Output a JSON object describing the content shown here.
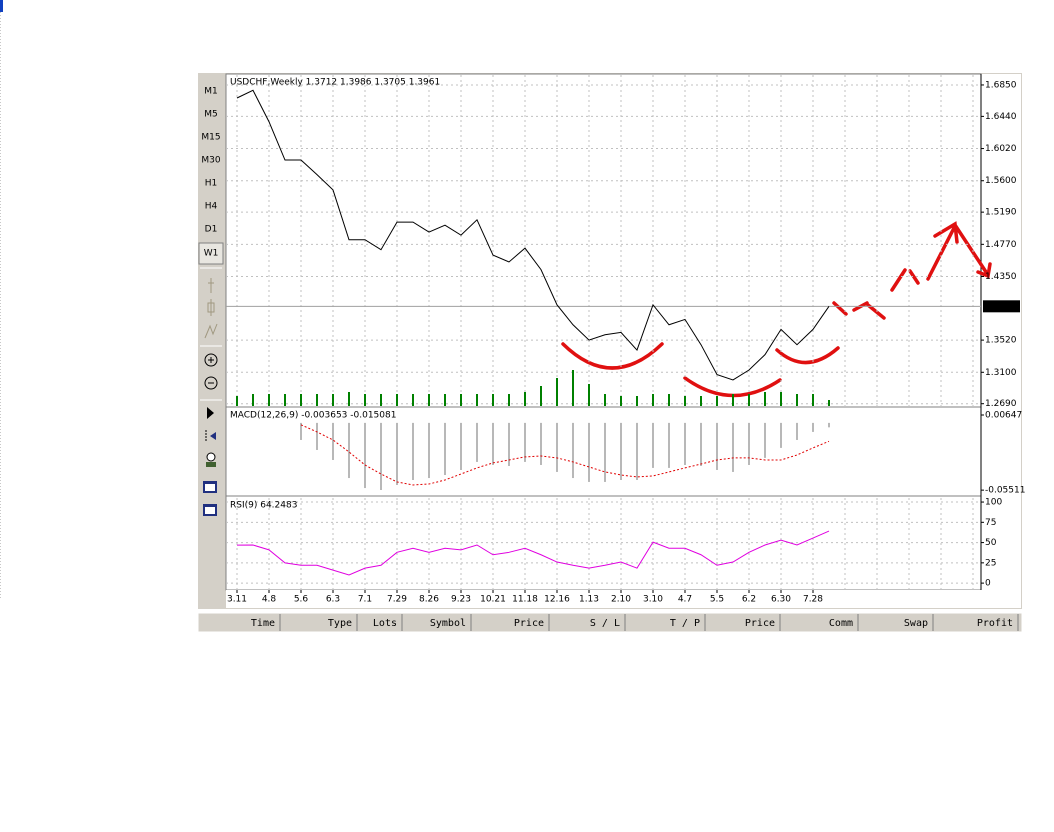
{
  "toolbar": {
    "timeframes": [
      "M1",
      "M5",
      "M15",
      "M30",
      "H1",
      "H4",
      "D1",
      "W1"
    ]
  },
  "chart_data": [
    {
      "type": "line",
      "title": "USDCHF,Weekly  1.3712 1.3986 1.3705 1.3961",
      "color": "#000000",
      "values": [
        1.668,
        1.678,
        1.637,
        1.587,
        1.587,
        1.568,
        1.548,
        1.483,
        1.483,
        1.47,
        1.506,
        1.506,
        1.493,
        1.502,
        1.489,
        1.509,
        1.463,
        1.454,
        1.472,
        1.444,
        1.398,
        1.372,
        1.352,
        1.359,
        1.362,
        1.339,
        1.398,
        1.372,
        1.379,
        1.346,
        1.307,
        1.3,
        1.313,
        1.333,
        1.366,
        1.346,
        1.366,
        1.3961
      ],
      "volume": [
        10,
        12,
        12,
        12,
        12,
        12,
        12,
        14,
        12,
        12,
        12,
        12,
        12,
        12,
        12,
        12,
        12,
        12,
        14,
        20,
        28,
        36,
        22,
        12,
        10,
        10,
        12,
        12,
        10,
        10,
        10,
        12,
        12,
        14,
        14,
        12,
        12,
        6
      ],
      "volume_color": "#008000",
      "ylim": [
        1.266,
        1.698
      ],
      "yticks": [
        {
          "value": 1.685,
          "label": "1.6850"
        },
        {
          "value": 1.644,
          "label": "1.6440"
        },
        {
          "value": 1.602,
          "label": "1.6020"
        },
        {
          "value": 1.56,
          "label": "1.5600"
        },
        {
          "value": 1.519,
          "label": "1.5190"
        },
        {
          "value": 1.477,
          "label": "1.4770"
        },
        {
          "value": 1.435,
          "label": "1.4350"
        },
        {
          "value": 1.352,
          "label": "1.3520"
        },
        {
          "value": 1.31,
          "label": "1.3100"
        },
        {
          "value": 1.269,
          "label": "1.2690"
        }
      ],
      "price_line": {
        "value": 1.3961,
        "label": "1.3961"
      },
      "grid": true
    },
    {
      "type": "macd",
      "title": "MACD(12,26,9)  -0.003653  -0.015081",
      "color": "#a0a0a0",
      "signal_color": "#e00000",
      "values": [
        null,
        null,
        null,
        null,
        -0.014,
        -0.0222,
        -0.0304,
        -0.0452,
        -0.0534,
        -0.055,
        -0.0509,
        -0.0468,
        -0.0452,
        -0.0427,
        -0.0386,
        -0.032,
        -0.0345,
        -0.0353,
        -0.032,
        -0.0345,
        -0.0402,
        -0.0452,
        -0.0484,
        -0.0484,
        -0.0468,
        -0.0468,
        -0.0369,
        -0.0369,
        -0.0345,
        -0.0353,
        -0.0386,
        -0.0402,
        -0.0345,
        -0.0287,
        -0.0205,
        -0.014,
        -0.0074,
        -0.003653
      ],
      "signal": [
        null,
        null,
        null,
        null,
        -0.0016,
        -0.0074,
        -0.014,
        -0.0238,
        -0.0345,
        -0.0419,
        -0.0484,
        -0.0509,
        -0.0501,
        -0.0468,
        -0.0419,
        -0.0369,
        -0.0328,
        -0.0304,
        -0.0279,
        -0.0271,
        -0.0287,
        -0.032,
        -0.0361,
        -0.0402,
        -0.0427,
        -0.0443,
        -0.0435,
        -0.0402,
        -0.0369,
        -0.0337,
        -0.0304,
        -0.0287,
        -0.0287,
        -0.0304,
        -0.0304,
        -0.0263,
        -0.0205,
        -0.015081
      ],
      "ylim": [
        -0.0591,
        0.0122
      ],
      "yticks": [
        0.00647,
        -0.05511
      ]
    },
    {
      "type": "line",
      "title": "RSI(9)  64.2483",
      "color": "#e000e0",
      "categories": [
        "3.11",
        null,
        "4.8",
        null,
        "5.6",
        null,
        "6.3",
        null,
        "7.1",
        null,
        "7.29",
        null,
        "8.26",
        null,
        "9.23",
        null,
        "10.21",
        null,
        "11.18",
        null,
        "12.16",
        null,
        "1.13",
        null,
        "2.10",
        null,
        "3.10",
        null,
        "4.7",
        null,
        "5.5",
        null,
        "6.2",
        null,
        "6.30",
        null,
        "7.28",
        null
      ],
      "values": [
        46.9,
        47,
        41,
        25,
        22,
        22,
        16,
        10,
        18.5,
        22,
        38,
        43,
        38,
        43,
        41,
        47,
        35,
        38,
        43,
        35,
        26,
        22,
        18.5,
        22,
        26,
        18.5,
        50.6,
        43,
        43,
        35,
        22,
        26,
        38,
        47,
        53,
        47,
        55.6,
        64.2483
      ],
      "ylim": [
        -8.5,
        105
      ],
      "yticks": [
        100,
        75,
        50,
        25,
        0
      ],
      "grid": true
    }
  ],
  "terminal": {
    "columns": [
      "Time",
      "Type",
      "Lots",
      "Symbol",
      "Price",
      "S / L",
      "T / P",
      "Price",
      "Comm",
      "Swap",
      "Profit"
    ]
  }
}
